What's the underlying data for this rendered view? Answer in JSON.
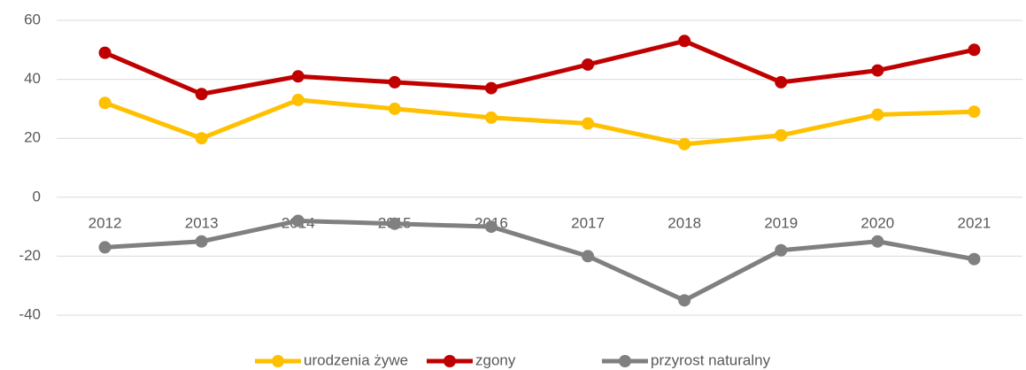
{
  "chart_data": {
    "type": "line",
    "categories": [
      "2012",
      "2013",
      "2014",
      "2015",
      "2016",
      "2017",
      "2018",
      "2019",
      "2020",
      "2021"
    ],
    "series": [
      {
        "name": "urodzenia żywe",
        "color": "#ffc000",
        "values": [
          32,
          20,
          33,
          30,
          27,
          25,
          18,
          21,
          28,
          29
        ]
      },
      {
        "name": "zgony",
        "color": "#c00000",
        "values": [
          49,
          35,
          41,
          39,
          37,
          45,
          53,
          39,
          43,
          50
        ]
      },
      {
        "name": "przyrost naturalny",
        "color": "#808080",
        "values": [
          -17,
          -15,
          -8,
          -9,
          -10,
          -20,
          -35,
          -18,
          -15,
          -21
        ]
      }
    ],
    "ylim": [
      -40,
      60
    ],
    "yticks": [
      -40,
      -20,
      0,
      20,
      40,
      60
    ],
    "grid": true,
    "legend": "bottom"
  }
}
